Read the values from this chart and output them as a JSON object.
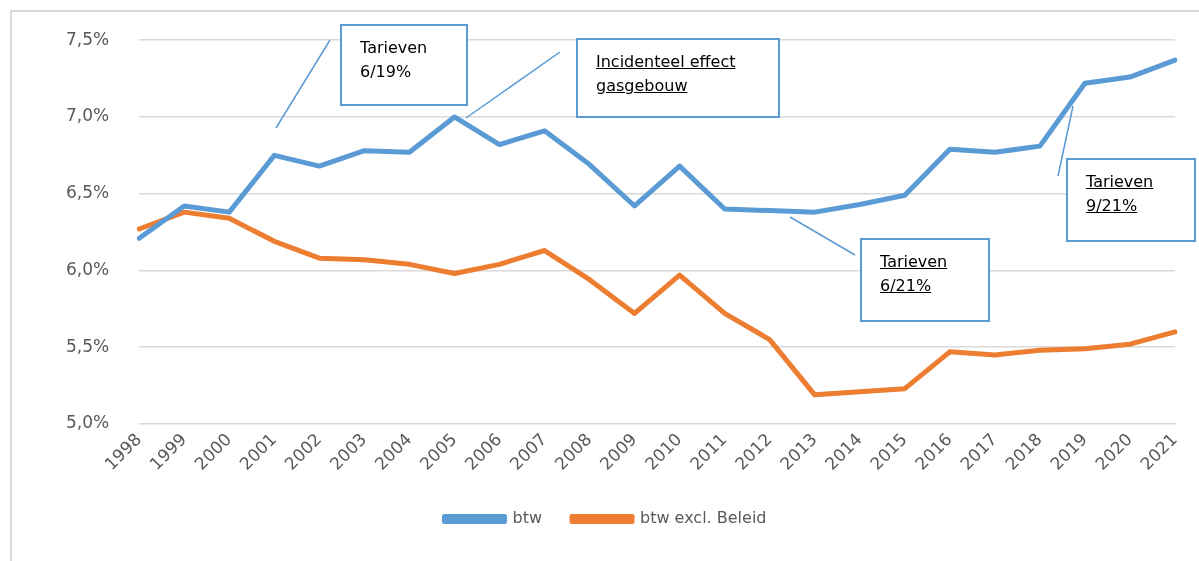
{
  "chart_data": {
    "type": "line",
    "categories": [
      "1998",
      "1999",
      "2000",
      "2001",
      "2002",
      "2003",
      "2004",
      "2005",
      "2006",
      "2007",
      "2008",
      "2009",
      "2010",
      "2011",
      "2012",
      "2013",
      "2014",
      "2015",
      "2016",
      "2017",
      "2018",
      "2019",
      "2020",
      "2021"
    ],
    "series": [
      {
        "name": "btw",
        "color": "#5b9bd5",
        "values": [
          6.21,
          6.42,
          6.38,
          6.75,
          6.68,
          6.78,
          6.77,
          7.0,
          6.82,
          6.91,
          6.69,
          6.42,
          6.68,
          6.4,
          6.39,
          6.38,
          6.43,
          6.49,
          6.79,
          6.77,
          6.81,
          7.22,
          7.26,
          7.37
        ]
      },
      {
        "name": "btw excl. Beleid",
        "color": "#ed7d31",
        "values": [
          6.27,
          6.38,
          6.34,
          6.19,
          6.08,
          6.07,
          6.04,
          5.98,
          6.04,
          6.13,
          5.94,
          5.72,
          5.97,
          5.72,
          5.55,
          5.19,
          5.21,
          5.23,
          5.47,
          5.45,
          5.48,
          5.49,
          5.52,
          5.6
        ]
      }
    ],
    "ylim": [
      5,
      7.5
    ],
    "yticks": [
      {
        "value": 5,
        "label": "5,0%"
      },
      {
        "value": 5.5,
        "label": "5,5%"
      },
      {
        "value": 6,
        "label": "6,0%"
      },
      {
        "value": 6.5,
        "label": "6,5%"
      },
      {
        "value": 7,
        "label": "7,0%"
      },
      {
        "value": 7.5,
        "label": "7,5%"
      }
    ],
    "grid": "y",
    "legend": "bottom",
    "marker": "none",
    "line_style": "solid",
    "annotations": [
      "Tarieven 6/19%",
      "Incidenteel effect gasgebouw",
      "Tarieven 6/21%",
      "Tarieven 9/21%"
    ]
  }
}
